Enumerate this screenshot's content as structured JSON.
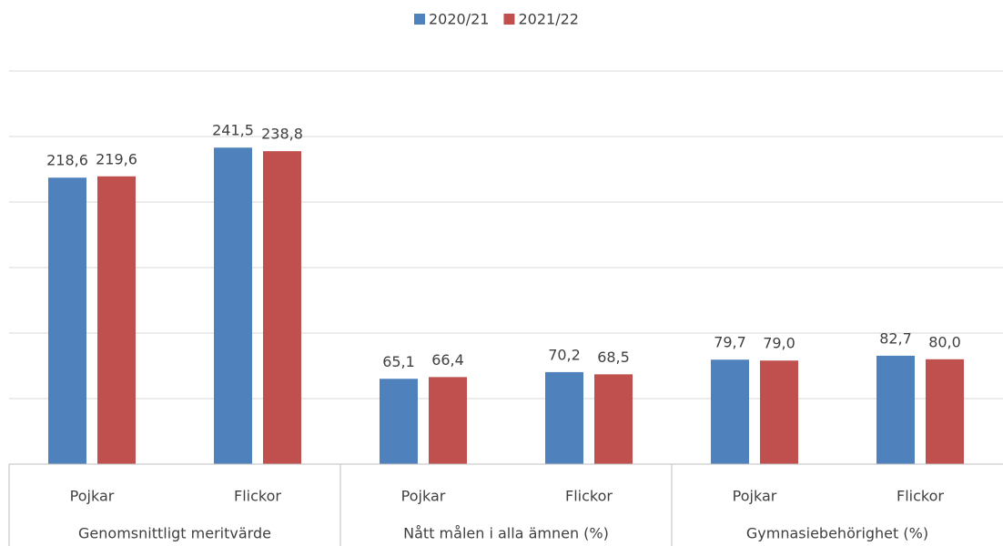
{
  "chart_data": {
    "type": "bar",
    "categories": [
      "Pojkar",
      "Flickor",
      "Pojkar",
      "Flickor",
      "Pojkar",
      "Flickor"
    ],
    "groups": [
      "Genomsnittligt meritvärde",
      "Nått målen i alla ämnen (%)",
      "Gymnasiebehörighet (%)"
    ],
    "series": [
      {
        "name": "2020/21",
        "color": "#4f81bd",
        "values": [
          218.6,
          241.5,
          65.1,
          70.2,
          79.7,
          82.7
        ],
        "value_labels": [
          "218,6",
          "241,5",
          "65,1",
          "70,2",
          "79,7",
          "82,7"
        ]
      },
      {
        "name": "2021/22",
        "color": "#c0504d",
        "values": [
          219.6,
          238.8,
          66.4,
          68.5,
          79.0,
          80.0
        ],
        "value_labels": [
          "219,6",
          "238,8",
          "66,4",
          "68,5",
          "79,0",
          "80,0"
        ]
      }
    ],
    "ylim": [
      0,
      300
    ],
    "yticks": [
      0,
      50,
      100,
      150,
      200,
      250,
      300
    ],
    "grid": true,
    "legend": "top"
  }
}
